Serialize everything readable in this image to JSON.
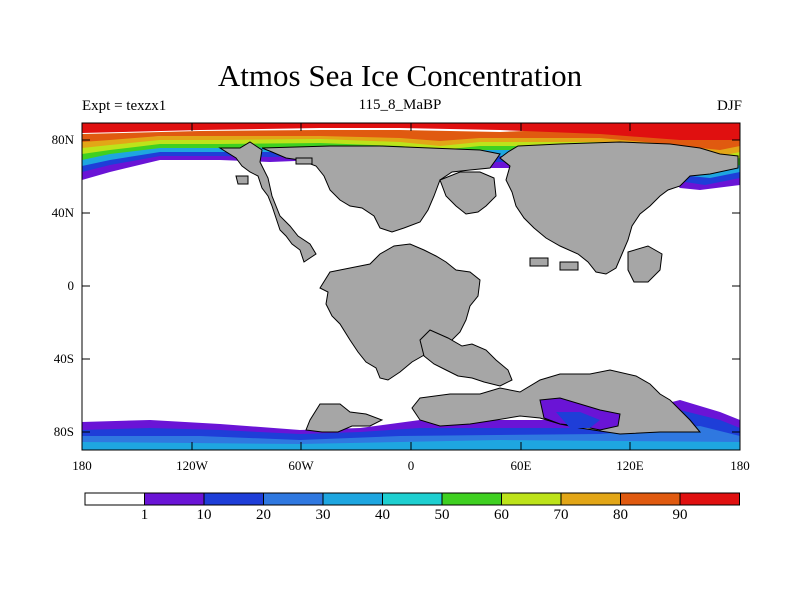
{
  "title": "Atmos Sea Ice Concentration",
  "left_label": "Expt = texzx1",
  "center_label": "115_8_MaBP",
  "right_label": "DJF",
  "map": {
    "lat_labels": [
      "80N",
      "40N",
      "0",
      "40S",
      "80S"
    ],
    "lon_labels": [
      "180",
      "120W",
      "60W",
      "0",
      "60E",
      "120E",
      "180"
    ],
    "land_color": "#a6a6a6",
    "ocean_color": "#ffffff"
  },
  "colorbar": {
    "levels": [
      "1",
      "10",
      "20",
      "30",
      "40",
      "50",
      "60",
      "70",
      "80",
      "90"
    ],
    "colors": [
      "#ffffff",
      "#6a14d6",
      "#1e3ed8",
      "#2f78e0",
      "#1ea6e0",
      "#1ecfd0",
      "#3fd021",
      "#bde31a",
      "#e2a617",
      "#e05a10",
      "#e01010"
    ]
  }
}
